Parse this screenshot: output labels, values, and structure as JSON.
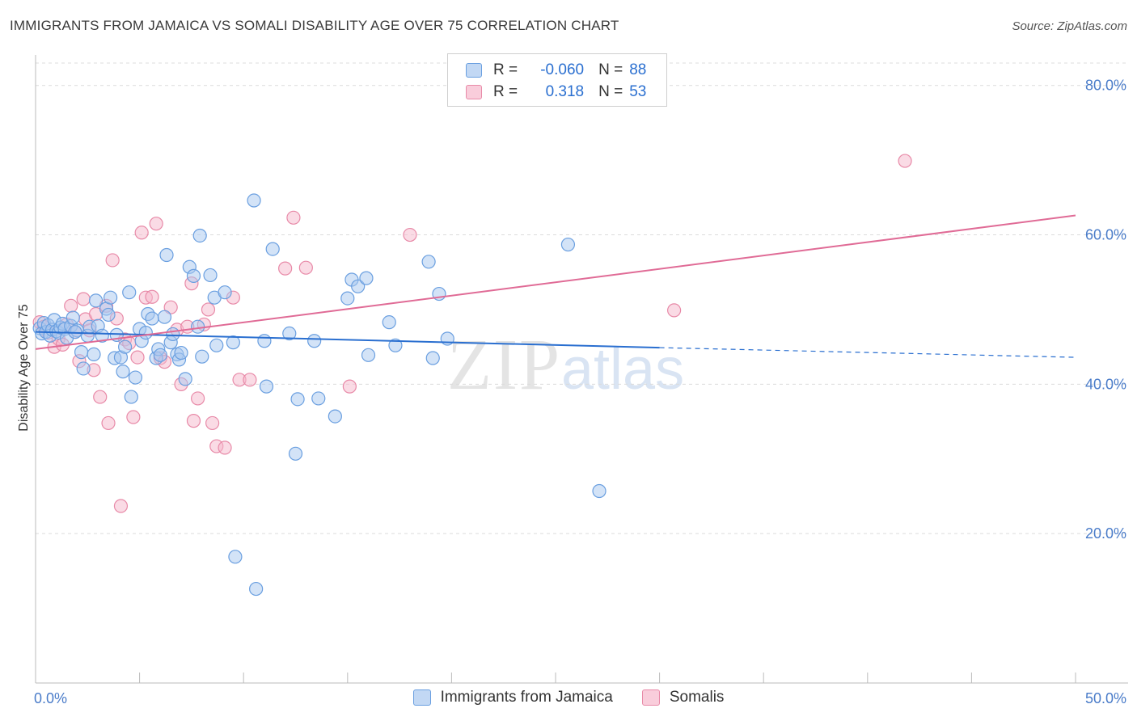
{
  "title": "IMMIGRANTS FROM JAMAICA VS SOMALI DISABILITY AGE OVER 75 CORRELATION CHART",
  "source": "Source: ZipAtlas.com",
  "watermark": {
    "zip": "ZIP",
    "atlas": "atlas"
  },
  "legend": {
    "row1": {
      "r_label": "R =",
      "r_value": "-0.060",
      "n_label": "N =",
      "n_value": "88"
    },
    "row2": {
      "r_label": "R =",
      "r_value": "0.318",
      "n_label": "N =",
      "n_value": "53"
    }
  },
  "colors": {
    "blue_fill": "#a8c8f0",
    "blue_stroke": "#6a9fe0",
    "blue_line": "#2a6fd0",
    "pink_fill": "#f6b8cc",
    "pink_stroke": "#e88aa8",
    "pink_line": "#e06b96",
    "grid": "#dcdcdc",
    "axis_text": "#4a7cc9"
  },
  "chart_data": {
    "type": "scatter",
    "title": "IMMIGRANTS FROM JAMAICA VS SOMALI DISABILITY AGE OVER 75 CORRELATION CHART",
    "xlabel": "",
    "ylabel": "Disability Age Over 75",
    "xlim": [
      0,
      50
    ],
    "ylim": [
      0,
      83
    ],
    "x_tick_labels": [
      "0.0%",
      "50.0%"
    ],
    "y_ticks": [
      20,
      40,
      60,
      80
    ],
    "y_tick_labels": [
      "20.0%",
      "40.0%",
      "60.0%",
      "80.0%"
    ],
    "series": [
      {
        "name": "Immigrants from Jamaica",
        "color": "#a8c8f0",
        "trend": {
          "x": [
            0,
            30
          ],
          "y": [
            47.0,
            44.9
          ],
          "dashed_to": [
            50,
            43.6
          ]
        },
        "points": [
          [
            0.2,
            47.5
          ],
          [
            0.3,
            46.8
          ],
          [
            0.4,
            48.2
          ],
          [
            0.5,
            47.0
          ],
          [
            0.6,
            47.9
          ],
          [
            0.7,
            46.5
          ],
          [
            0.8,
            47.3
          ],
          [
            0.9,
            48.6
          ],
          [
            1.0,
            47.1
          ],
          [
            1.1,
            46.9
          ],
          [
            1.2,
            47.6
          ],
          [
            1.3,
            48.1
          ],
          [
            1.4,
            47.4
          ],
          [
            1.5,
            46.2
          ],
          [
            1.7,
            47.8
          ],
          [
            1.8,
            48.9
          ],
          [
            2.0,
            47.2
          ],
          [
            2.2,
            44.3
          ],
          [
            2.3,
            42.1
          ],
          [
            2.5,
            46.5
          ],
          [
            2.6,
            47.7
          ],
          [
            2.8,
            44.0
          ],
          [
            2.9,
            51.2
          ],
          [
            3.0,
            47.8
          ],
          [
            3.2,
            46.5
          ],
          [
            3.4,
            50.1
          ],
          [
            3.5,
            49.3
          ],
          [
            3.6,
            51.6
          ],
          [
            3.8,
            43.5
          ],
          [
            3.9,
            46.6
          ],
          [
            4.1,
            43.6
          ],
          [
            4.2,
            41.7
          ],
          [
            4.3,
            45.0
          ],
          [
            4.5,
            52.3
          ],
          [
            4.6,
            38.3
          ],
          [
            4.8,
            40.9
          ],
          [
            5.0,
            47.4
          ],
          [
            5.1,
            45.8
          ],
          [
            5.3,
            46.9
          ],
          [
            5.4,
            49.4
          ],
          [
            5.6,
            48.8
          ],
          [
            5.8,
            43.5
          ],
          [
            5.9,
            44.7
          ],
          [
            6.0,
            43.9
          ],
          [
            6.2,
            49.0
          ],
          [
            6.3,
            57.3
          ],
          [
            6.5,
            45.6
          ],
          [
            6.6,
            46.7
          ],
          [
            6.8,
            44.0
          ],
          [
            6.9,
            43.3
          ],
          [
            7.0,
            44.2
          ],
          [
            7.2,
            40.7
          ],
          [
            7.4,
            55.7
          ],
          [
            7.6,
            54.5
          ],
          [
            7.8,
            47.7
          ],
          [
            7.9,
            59.9
          ],
          [
            8.0,
            43.7
          ],
          [
            8.4,
            54.6
          ],
          [
            8.6,
            51.6
          ],
          [
            8.7,
            45.2
          ],
          [
            9.1,
            52.3
          ],
          [
            9.5,
            45.6
          ],
          [
            10.5,
            64.6
          ],
          [
            11.0,
            45.8
          ],
          [
            11.1,
            39.7
          ],
          [
            11.4,
            58.1
          ],
          [
            12.2,
            46.8
          ],
          [
            12.5,
            30.7
          ],
          [
            12.6,
            38.0
          ],
          [
            13.4,
            45.8
          ],
          [
            13.6,
            38.1
          ],
          [
            14.4,
            35.7
          ],
          [
            15.0,
            51.5
          ],
          [
            15.2,
            54.0
          ],
          [
            15.5,
            53.1
          ],
          [
            15.9,
            54.2
          ],
          [
            16.0,
            43.9
          ],
          [
            17.0,
            48.3
          ],
          [
            17.3,
            45.2
          ],
          [
            18.9,
            56.4
          ],
          [
            19.1,
            43.5
          ],
          [
            19.4,
            52.1
          ],
          [
            19.8,
            46.1
          ],
          [
            25.6,
            58.7
          ],
          [
            27.1,
            25.7
          ],
          [
            9.6,
            16.9
          ],
          [
            10.6,
            12.6
          ],
          [
            1.9,
            47.0
          ]
        ]
      },
      {
        "name": "Somalis",
        "color": "#f6b8cc",
        "trend": {
          "x": [
            0,
            50
          ],
          "y": [
            44.7,
            62.6
          ]
        },
        "points": [
          [
            0.2,
            48.3
          ],
          [
            0.4,
            47.7
          ],
          [
            0.6,
            46.9
          ],
          [
            0.9,
            45.0
          ],
          [
            1.1,
            46.1
          ],
          [
            1.3,
            45.3
          ],
          [
            1.5,
            48.0
          ],
          [
            1.7,
            50.5
          ],
          [
            1.9,
            47.0
          ],
          [
            2.1,
            43.1
          ],
          [
            2.3,
            51.4
          ],
          [
            2.4,
            48.7
          ],
          [
            2.6,
            47.2
          ],
          [
            2.8,
            41.9
          ],
          [
            2.9,
            49.4
          ],
          [
            3.1,
            38.3
          ],
          [
            3.4,
            50.5
          ],
          [
            3.5,
            34.8
          ],
          [
            3.7,
            56.6
          ],
          [
            3.9,
            48.8
          ],
          [
            4.1,
            23.7
          ],
          [
            4.3,
            46.0
          ],
          [
            4.5,
            45.5
          ],
          [
            4.7,
            35.6
          ],
          [
            4.9,
            43.6
          ],
          [
            5.1,
            60.3
          ],
          [
            5.3,
            51.6
          ],
          [
            5.6,
            51.7
          ],
          [
            5.8,
            61.5
          ],
          [
            6.0,
            43.5
          ],
          [
            6.2,
            43.0
          ],
          [
            6.5,
            50.3
          ],
          [
            6.8,
            47.3
          ],
          [
            7.0,
            40.0
          ],
          [
            7.3,
            47.7
          ],
          [
            7.5,
            53.5
          ],
          [
            7.6,
            35.1
          ],
          [
            7.8,
            38.1
          ],
          [
            8.1,
            48.0
          ],
          [
            8.3,
            50.0
          ],
          [
            8.5,
            34.8
          ],
          [
            8.7,
            31.7
          ],
          [
            9.1,
            31.5
          ],
          [
            9.5,
            51.6
          ],
          [
            9.8,
            40.6
          ],
          [
            10.3,
            40.6
          ],
          [
            12.4,
            62.3
          ],
          [
            13.0,
            55.6
          ],
          [
            15.1,
            39.7
          ],
          [
            18.0,
            60.0
          ],
          [
            30.7,
            49.9
          ],
          [
            41.8,
            69.9
          ],
          [
            12.0,
            55.5
          ]
        ]
      }
    ]
  },
  "bottom_legend": {
    "series1": "Immigrants from Jamaica",
    "series2": "Somalis"
  }
}
